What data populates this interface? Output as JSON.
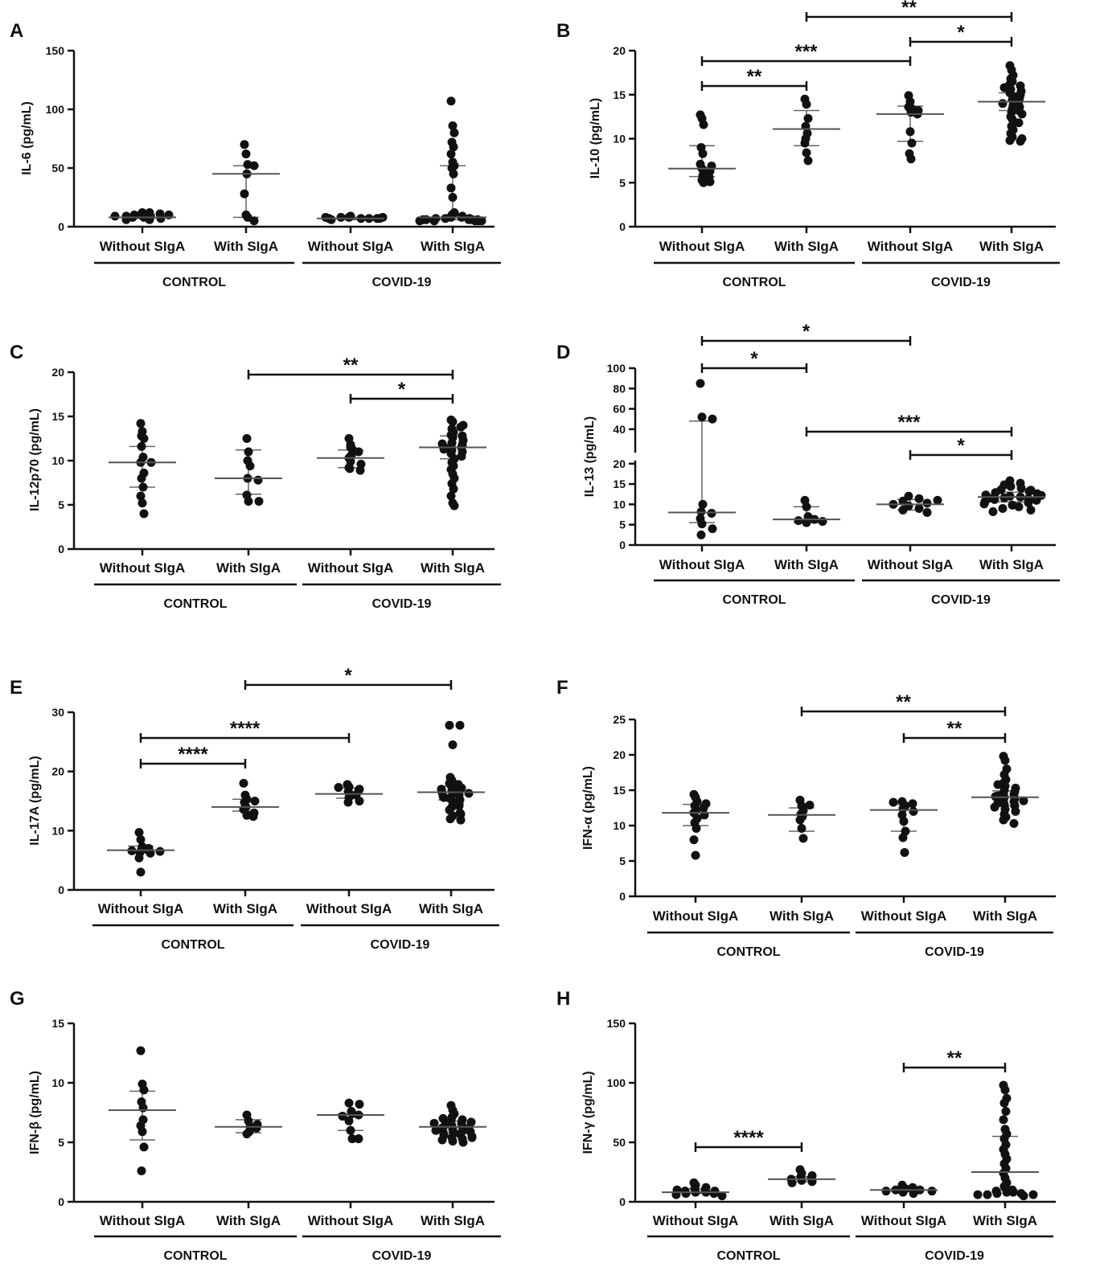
{
  "figure": {
    "categories": [
      "Without SIgA",
      "With SIgA",
      "Without SIgA",
      "With SIgA"
    ],
    "groups": [
      "CONTROL",
      "COVID-19"
    ]
  },
  "chart_data": [
    {
      "panel": "A",
      "type": "scatter",
      "ylabel": "IL-6 (pg/mL)",
      "ylim": [
        0,
        150
      ],
      "yticks": [
        0,
        50,
        100,
        150
      ],
      "series": [
        {
          "category": "Without SIgA",
          "group": "CONTROL",
          "median": 8,
          "iqr": [
            7,
            10
          ],
          "points": [
            10,
            12,
            8,
            9,
            10,
            6,
            11,
            9,
            8,
            7,
            12,
            10,
            6,
            9
          ]
        },
        {
          "category": "With SIgA",
          "group": "CONTROL",
          "median": 45,
          "iqr": [
            8,
            52
          ],
          "points": [
            70,
            62,
            53,
            52,
            45,
            28,
            10,
            8,
            5
          ]
        },
        {
          "category": "Without SIgA",
          "group": "COVID-19",
          "median": 7,
          "iqr": [
            6,
            8
          ],
          "points": [
            8,
            9,
            7,
            8,
            7,
            6,
            7,
            8,
            7,
            7,
            8
          ]
        },
        {
          "category": "With SIgA",
          "group": "COVID-19",
          "median": 8,
          "iqr": [
            6,
            52
          ],
          "points": [
            107,
            86,
            80,
            72,
            68,
            62,
            55,
            52,
            50,
            45,
            33,
            25,
            12,
            10,
            9,
            8,
            8,
            7,
            7,
            7,
            6,
            6,
            6,
            6,
            6,
            6,
            5,
            5,
            5,
            5,
            5
          ]
        }
      ],
      "sig": []
    },
    {
      "panel": "B",
      "type": "scatter",
      "ylabel": "IL-10 (pg/mL)",
      "ylim": [
        0,
        20
      ],
      "yticks": [
        0,
        5,
        10,
        15,
        20
      ],
      "series": [
        {
          "category": "Without SIgA",
          "group": "CONTROL",
          "median": 6.6,
          "iqr": [
            5.7,
            9.2
          ],
          "points": [
            12.7,
            12.3,
            11.6,
            9.0,
            8.3,
            7.1,
            6.6,
            6.4,
            6.3,
            5.8,
            5.6,
            5.3,
            5.0,
            5.1,
            6.9
          ]
        },
        {
          "category": "With SIgA",
          "group": "CONTROL",
          "median": 11.1,
          "iqr": [
            9.2,
            13.2
          ],
          "points": [
            14.5,
            13.9,
            12.3,
            11.4,
            10.6,
            9.5,
            8.4,
            7.5,
            10.0
          ]
        },
        {
          "category": "Without SIgA",
          "group": "COVID-19",
          "median": 12.8,
          "iqr": [
            9.7,
            13.7
          ],
          "points": [
            14.9,
            14.2,
            13.4,
            13.2,
            13.0,
            12.8,
            10.8,
            9.5,
            8.3,
            7.7,
            13.6
          ]
        },
        {
          "category": "With SIgA",
          "group": "COVID-19",
          "median": 14.2,
          "iqr": [
            13.2,
            15.2
          ],
          "points": [
            18.3,
            17.8,
            17.2,
            16.8,
            16.5,
            16.2,
            16.0,
            15.8,
            15.6,
            15.4,
            15.2,
            15.0,
            14.8,
            14.6,
            14.4,
            14.2,
            14.0,
            13.8,
            13.6,
            13.4,
            13.2,
            13.0,
            12.8,
            12.5,
            12.2,
            11.8,
            11.4,
            11.0,
            10.6,
            10.2,
            9.8,
            9.7,
            10.0
          ]
        }
      ],
      "sig": [
        {
          "from": 1,
          "to": 3,
          "label": "**"
        },
        {
          "from": 2,
          "to": 3,
          "label": "*"
        },
        {
          "from": 0,
          "to": 2,
          "label": "***"
        },
        {
          "from": 0,
          "to": 1,
          "label": "**"
        }
      ]
    },
    {
      "panel": "C",
      "type": "scatter",
      "ylabel": "IL-12p70 (pg/mL)",
      "ylim": [
        0,
        20
      ],
      "yticks": [
        0,
        5,
        10,
        15,
        20
      ],
      "series": [
        {
          "category": "Without SIgA",
          "group": "CONTROL",
          "median": 9.8,
          "iqr": [
            7.0,
            11.6
          ],
          "points": [
            14.2,
            13.3,
            12.5,
            11.6,
            10.4,
            9.8,
            9.8,
            8.6,
            8.0,
            7.0,
            6.0,
            5.2,
            4.0,
            12.8
          ]
        },
        {
          "category": "With SIgA",
          "group": "CONTROL",
          "median": 8.0,
          "iqr": [
            6.2,
            11.2
          ],
          "points": [
            12.5,
            11.0,
            9.4,
            8.0,
            7.8,
            6.1,
            5.4,
            5.4,
            10.0
          ]
        },
        {
          "category": "Without SIgA",
          "group": "COVID-19",
          "median": 10.3,
          "iqr": [
            9.2,
            11.2
          ],
          "points": [
            12.5,
            11.8,
            11.3,
            11.0,
            10.6,
            10.3,
            9.9,
            9.6,
            9.1,
            8.9,
            9.2,
            11.5
          ]
        },
        {
          "category": "With SIgA",
          "group": "COVID-19",
          "median": 11.5,
          "iqr": [
            10.2,
            12.8
          ],
          "points": [
            14.6,
            14.4,
            14.0,
            13.6,
            13.2,
            12.9,
            12.6,
            12.3,
            12.0,
            11.8,
            11.6,
            11.5,
            11.4,
            11.2,
            11.0,
            10.8,
            10.5,
            10.2,
            9.8,
            9.4,
            9.0,
            8.5,
            8.0,
            7.4,
            6.8,
            6.0,
            5.2,
            4.9,
            13.8,
            12.8,
            11.9,
            11.3
          ]
        }
      ],
      "sig": [
        {
          "from": 1,
          "to": 3,
          "label": "**"
        },
        {
          "from": 2,
          "to": 3,
          "label": "*"
        }
      ]
    },
    {
      "panel": "D",
      "type": "scatter",
      "ylabel": "IL-13 (pg/mL)",
      "ylim": [
        0,
        100
      ],
      "yticks": [
        0,
        5,
        10,
        15,
        20,
        40,
        60,
        80,
        100
      ],
      "axis_break": [
        20,
        20
      ],
      "series": [
        {
          "category": "Without SIgA",
          "group": "CONTROL",
          "median": 8.0,
          "iqr": [
            5.5,
            48.0
          ],
          "points": [
            85,
            52,
            50,
            8.2,
            7.8,
            6.5,
            5.2,
            4.0,
            2.5,
            10.0
          ]
        },
        {
          "category": "With SIgA",
          "group": "CONTROL",
          "median": 6.3,
          "iqr": [
            5.5,
            9.4
          ],
          "points": [
            11.0,
            9.4,
            7.0,
            6.3,
            6.0,
            5.8,
            5.5
          ]
        },
        {
          "category": "Without SIgA",
          "group": "COVID-19",
          "median": 10.0,
          "iqr": [
            8.6,
            11.2
          ],
          "points": [
            12.0,
            11.4,
            10.8,
            10.3,
            10.0,
            9.6,
            9.0,
            8.6,
            8.0,
            11.0
          ]
        },
        {
          "category": "With SIgA",
          "group": "COVID-19",
          "median": 11.8,
          "iqr": [
            10.6,
            13.0
          ],
          "points": [
            15.8,
            15.2,
            14.8,
            14.4,
            14.0,
            13.6,
            13.2,
            12.9,
            12.6,
            12.3,
            12.0,
            11.8,
            11.6,
            11.4,
            11.2,
            11.0,
            10.7,
            10.4,
            10.1,
            9.8,
            9.4,
            9.0,
            8.6,
            8.2,
            13.5,
            12.2,
            11.5
          ]
        }
      ],
      "sig": [
        {
          "from": 0,
          "to": 2,
          "label": "*"
        },
        {
          "from": 0,
          "to": 1,
          "label": "*"
        },
        {
          "from": 1,
          "to": 3,
          "label": "***"
        },
        {
          "from": 2,
          "to": 3,
          "label": "*"
        }
      ]
    },
    {
      "panel": "E",
      "type": "scatter",
      "ylabel": "IL-17A (pg/mL)",
      "ylim": [
        0,
        30
      ],
      "yticks": [
        0,
        10,
        20,
        30
      ],
      "series": [
        {
          "category": "Without SIgA",
          "group": "CONTROL",
          "median": 6.7,
          "iqr": [
            6.3,
            7.4
          ],
          "points": [
            9.7,
            8.5,
            7.3,
            7.0,
            6.8,
            6.7,
            6.6,
            6.5,
            6.3,
            6.2,
            5.4,
            3.0
          ]
        },
        {
          "category": "With SIgA",
          "group": "CONTROL",
          "median": 14.0,
          "iqr": [
            13.3,
            15.3
          ],
          "points": [
            18.0,
            16.0,
            15.3,
            14.8,
            14.0,
            13.6,
            13.0,
            12.6,
            12.4,
            15.0
          ]
        },
        {
          "category": "Without SIgA",
          "group": "COVID-19",
          "median": 16.2,
          "iqr": [
            15.5,
            17.2
          ],
          "points": [
            17.8,
            17.4,
            17.0,
            16.6,
            16.2,
            16.0,
            15.6,
            15.0,
            14.8,
            16.8,
            17.3
          ]
        },
        {
          "category": "With SIgA",
          "group": "COVID-19",
          "median": 16.5,
          "iqr": [
            15.2,
            17.5
          ],
          "points": [
            27.8,
            27.8,
            24.5,
            19.0,
            18.5,
            18.0,
            17.6,
            17.2,
            17.0,
            16.8,
            16.6,
            16.4,
            16.2,
            16.0,
            15.8,
            15.5,
            15.2,
            14.9,
            14.5,
            14.0,
            13.5,
            13.0,
            12.5,
            12.0,
            11.8,
            17.8,
            16.3,
            15.6,
            14.2,
            12.8
          ]
        }
      ],
      "sig": [
        {
          "from": 1,
          "to": 3,
          "label": "*"
        },
        {
          "from": 0,
          "to": 2,
          "label": "****"
        },
        {
          "from": 0,
          "to": 1,
          "label": "****"
        }
      ]
    },
    {
      "panel": "F",
      "type": "scatter",
      "ylabel": "IFN-α (pg/mL)",
      "ylim": [
        0,
        25
      ],
      "yticks": [
        0,
        5,
        10,
        15,
        20,
        25
      ],
      "series": [
        {
          "category": "Without SIgA",
          "group": "CONTROL",
          "median": 11.8,
          "iqr": [
            10.0,
            13.0
          ],
          "points": [
            14.4,
            14.0,
            13.4,
            12.8,
            12.2,
            11.8,
            11.5,
            11.0,
            10.4,
            9.6,
            8.0,
            5.8,
            13.1,
            12.5
          ]
        },
        {
          "category": "With SIgA",
          "group": "CONTROL",
          "median": 11.5,
          "iqr": [
            9.2,
            12.5
          ],
          "points": [
            13.6,
            12.8,
            12.1,
            11.6,
            11.3,
            10.8,
            9.6,
            8.2,
            12.9
          ]
        },
        {
          "category": "Without SIgA",
          "group": "COVID-19",
          "median": 12.2,
          "iqr": [
            9.2,
            13.0
          ],
          "points": [
            13.4,
            13.1,
            12.8,
            12.4,
            12.0,
            11.5,
            10.6,
            9.2,
            8.3,
            6.2,
            13.3
          ]
        },
        {
          "category": "With SIgA",
          "group": "COVID-19",
          "median": 14.0,
          "iqr": [
            12.8,
            14.9
          ],
          "points": [
            19.8,
            19.2,
            18.0,
            17.2,
            16.5,
            16.0,
            15.6,
            15.3,
            15.0,
            14.8,
            14.6,
            14.4,
            14.2,
            14.0,
            13.8,
            13.6,
            13.4,
            13.2,
            13.0,
            12.8,
            12.6,
            12.3,
            12.0,
            11.6,
            11.2,
            10.8,
            10.3,
            15.8,
            14.1,
            13.5
          ]
        }
      ],
      "sig": [
        {
          "from": 1,
          "to": 3,
          "label": "**"
        },
        {
          "from": 2,
          "to": 3,
          "label": "**"
        }
      ]
    },
    {
      "panel": "G",
      "type": "scatter",
      "ylabel": "IFN-β (pg/mL)",
      "ylim": [
        0,
        15
      ],
      "yticks": [
        0,
        5,
        10,
        15
      ],
      "series": [
        {
          "category": "Without SIgA",
          "group": "CONTROL",
          "median": 7.7,
          "iqr": [
            5.2,
            9.3
          ],
          "points": [
            12.7,
            9.9,
            9.4,
            8.4,
            7.9,
            6.4,
            5.9,
            4.6,
            2.6,
            6.9
          ]
        },
        {
          "category": "With SIgA",
          "group": "CONTROL",
          "median": 6.3,
          "iqr": [
            5.8,
            6.9
          ],
          "points": [
            7.3,
            6.8,
            6.3,
            6.2,
            5.9,
            5.7,
            6.5
          ]
        },
        {
          "category": "Without SIgA",
          "group": "COVID-19",
          "median": 7.3,
          "iqr": [
            6.0,
            7.4
          ],
          "points": [
            8.3,
            8.2,
            7.4,
            7.3,
            7.2,
            6.8,
            6.0,
            5.3,
            5.3,
            7.6
          ]
        },
        {
          "category": "With SIgA",
          "group": "COVID-19",
          "median": 6.3,
          "iqr": [
            5.8,
            6.8
          ],
          "points": [
            8.1,
            7.7,
            7.4,
            7.1,
            6.9,
            6.8,
            6.6,
            6.5,
            6.4,
            6.3,
            6.2,
            6.1,
            6.0,
            5.9,
            5.8,
            5.7,
            5.6,
            5.5,
            5.4,
            5.3,
            5.2,
            5.1,
            5.0,
            7.0,
            6.7,
            6.2,
            5.9,
            5.4,
            6.6,
            6.0
          ]
        }
      ],
      "sig": []
    },
    {
      "panel": "H",
      "type": "scatter",
      "ylabel": "IFN-γ (pg/mL)",
      "ylim": [
        0,
        150
      ],
      "yticks": [
        0,
        50,
        100,
        150
      ],
      "series": [
        {
          "category": "Without SIgA",
          "group": "CONTROL",
          "median": 8,
          "iqr": [
            7,
            11
          ],
          "points": [
            16,
            14,
            12,
            11,
            10,
            9,
            8,
            8,
            7,
            7,
            6,
            5,
            9,
            10
          ]
        },
        {
          "category": "With SIgA",
          "group": "CONTROL",
          "median": 19,
          "iqr": [
            17,
            21
          ],
          "points": [
            27,
            24,
            22,
            21,
            20,
            19,
            18,
            17,
            16
          ]
        },
        {
          "category": "Without SIgA",
          "group": "COVID-19",
          "median": 10,
          "iqr": [
            9,
            11
          ],
          "points": [
            14,
            12,
            11,
            11,
            10,
            10,
            9,
            9,
            8,
            7
          ]
        },
        {
          "category": "With SIgA",
          "group": "COVID-19",
          "median": 25,
          "iqr": [
            10,
            55
          ],
          "points": [
            98,
            94,
            87,
            83,
            76,
            69,
            61,
            57,
            53,
            48,
            44,
            40,
            36,
            32,
            28,
            24,
            20,
            16,
            13,
            11,
            10,
            9,
            8,
            8,
            7,
            7,
            6,
            6,
            6,
            5
          ]
        }
      ],
      "sig": [
        {
          "from": 0,
          "to": 1,
          "label": "****"
        },
        {
          "from": 2,
          "to": 3,
          "label": "**"
        }
      ]
    }
  ]
}
